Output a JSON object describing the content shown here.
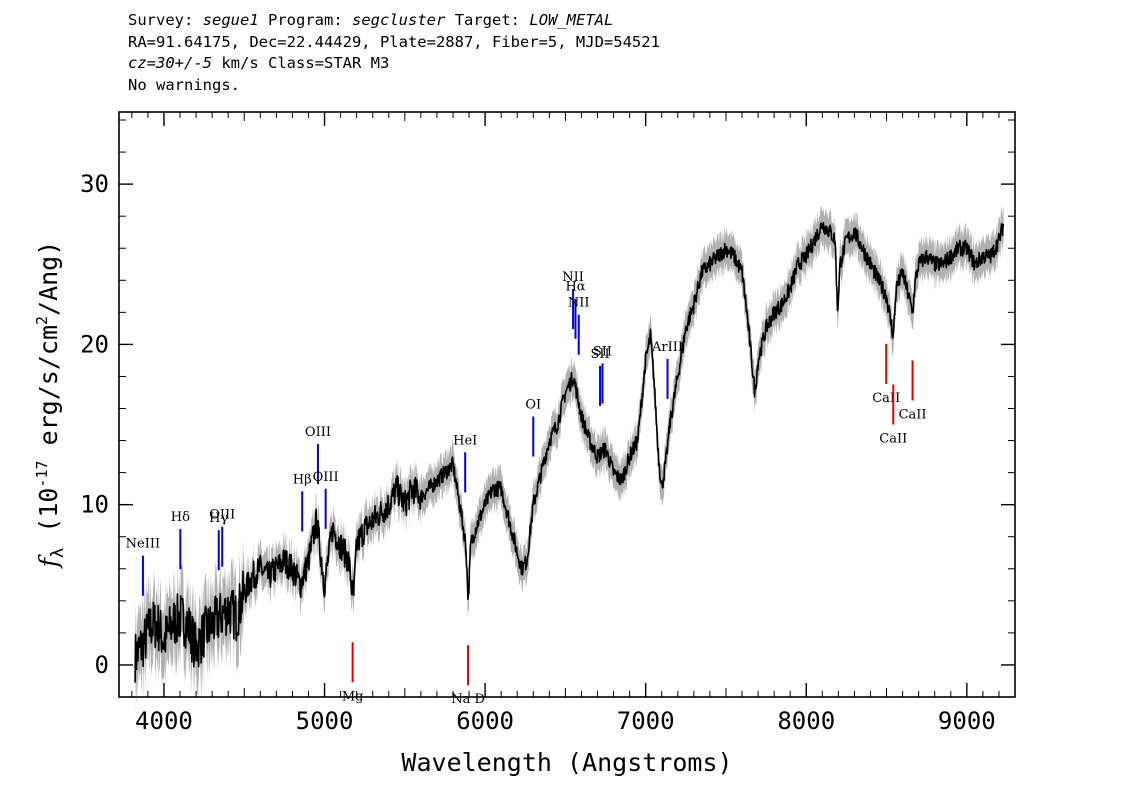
{
  "header": {
    "survey_label": "Survey:",
    "survey": "segue1",
    "program_label": "Program:",
    "program": "segcluster",
    "target_label": "Target:",
    "target": "LOW_METAL",
    "line2": "RA=91.64175, Dec=22.44429, Plate=2887, Fiber=5, MJD=54521",
    "redshift": "cz=30+/-5",
    "velocity_unit": "km/s",
    "class_text": "Class=STAR M3",
    "warnings": "No warnings."
  },
  "colors": {
    "emission": "#0000e0",
    "absorption": "#e00000",
    "flux": "#000000",
    "error_band": "#b0b0b0"
  },
  "chart_data": {
    "type": "line",
    "xlabel": "Wavelength (Angstroms)",
    "ylabel": "f_λ (10^-17 erg/s/cm^2/Ang)",
    "xlim": [
      3720,
      9300
    ],
    "ylim": [
      -2,
      34.5
    ],
    "x_ticks": [
      4000,
      5000,
      6000,
      7000,
      8000,
      9000
    ],
    "y_ticks": [
      0,
      10,
      20,
      30
    ],
    "grid": false,
    "series": [
      {
        "wavelength": [
          3820,
          3880,
          3920,
          3960,
          4000,
          4050,
          4100,
          4150,
          4200,
          4250,
          4300,
          4350,
          4400,
          4450,
          4500,
          4550,
          4600,
          4650,
          4700,
          4750,
          4800,
          4850,
          4900,
          4950,
          5000,
          5050,
          5100,
          5150,
          5180,
          5200,
          5250,
          5300,
          5350,
          5400,
          5450,
          5500,
          5550,
          5600,
          5650,
          5700,
          5750,
          5800,
          5850,
          5880,
          5895,
          5910,
          5940,
          6000,
          6050,
          6100,
          6150,
          6200,
          6230,
          6260,
          6300,
          6350,
          6400,
          6450,
          6500,
          6550,
          6600,
          6650,
          6700,
          6750,
          6800,
          6850,
          6900,
          6950,
          7000,
          7030,
          7050,
          7080,
          7100,
          7130,
          7150,
          7200,
          7250,
          7300,
          7350,
          7400,
          7450,
          7500,
          7550,
          7600,
          7630,
          7660,
          7680,
          7700,
          7750,
          7800,
          7850,
          7900,
          7950,
          8000,
          8050,
          8100,
          8150,
          8180,
          8195,
          8210,
          8250,
          8300,
          8350,
          8400,
          8450,
          8500,
          8542,
          8560,
          8600,
          8662,
          8680,
          8700,
          8750,
          8800,
          8850,
          8900,
          8950,
          9000,
          9050,
          9100,
          9150,
          9200,
          9230
        ],
        "flux": [
          0.5,
          1.5,
          2.5,
          2.5,
          1.5,
          2.5,
          3,
          2.5,
          1,
          2,
          2.5,
          3,
          3.5,
          3,
          4.5,
          5.5,
          6,
          5.5,
          6,
          6.5,
          6,
          5,
          6.5,
          9,
          5,
          8.5,
          7.5,
          6.5,
          4,
          7.5,
          8.5,
          9,
          9.5,
          10,
          11,
          10,
          11,
          10.5,
          11,
          11.5,
          12,
          12.5,
          9.5,
          7.5,
          4,
          7.5,
          8.5,
          10,
          11,
          11,
          9,
          7,
          6,
          6.5,
          10,
          12,
          14,
          15,
          17,
          18,
          15.5,
          14,
          13,
          13.5,
          12,
          11.5,
          13,
          14,
          19,
          20.5,
          18,
          13,
          11,
          13,
          15,
          18,
          21,
          22.5,
          24.5,
          25,
          25.5,
          26,
          25.5,
          24.5,
          22,
          19,
          17,
          19,
          21,
          22,
          22.5,
          23.5,
          25,
          25.5,
          26.5,
          27.5,
          27,
          26.5,
          22,
          25,
          26.5,
          27,
          26,
          25,
          24,
          23,
          20.5,
          23.5,
          24.5,
          22,
          24,
          25,
          25.5,
          25,
          25,
          25.5,
          26,
          26,
          25,
          25.5,
          25.5,
          26.5,
          27.5
        ],
        "error": 1.1
      }
    ],
    "emission_lines": [
      {
        "label": "NeIII",
        "wavelength": 3869
      },
      {
        "label": "Hδ",
        "wavelength": 4102
      },
      {
        "label": "Hγ",
        "wavelength": 4341
      },
      {
        "label": "OIII",
        "wavelength": 4363
      },
      {
        "label": "Hβ",
        "wavelength": 4861
      },
      {
        "label": "OIII",
        "wavelength": 4959
      },
      {
        "label": "OIII",
        "wavelength": 5007
      },
      {
        "label": "HeI",
        "wavelength": 5876
      },
      {
        "label": "OI",
        "wavelength": 6300
      },
      {
        "label": "NII",
        "wavelength": 6548
      },
      {
        "label": "Hα",
        "wavelength": 6563
      },
      {
        "label": "NII",
        "wavelength": 6583
      },
      {
        "label": "SII",
        "wavelength": 6716
      },
      {
        "label": "SII",
        "wavelength": 6731
      },
      {
        "label": "ArIII",
        "wavelength": 7136
      }
    ],
    "absorption_lines": [
      {
        "label": "Mg",
        "wavelength": 5175
      },
      {
        "label": "Na D",
        "wavelength": 5894
      },
      {
        "label": "CaII",
        "wavelength": 8498
      },
      {
        "label": "CaII",
        "wavelength": 8542
      },
      {
        "label": "CaII",
        "wavelength": 8662
      }
    ]
  }
}
